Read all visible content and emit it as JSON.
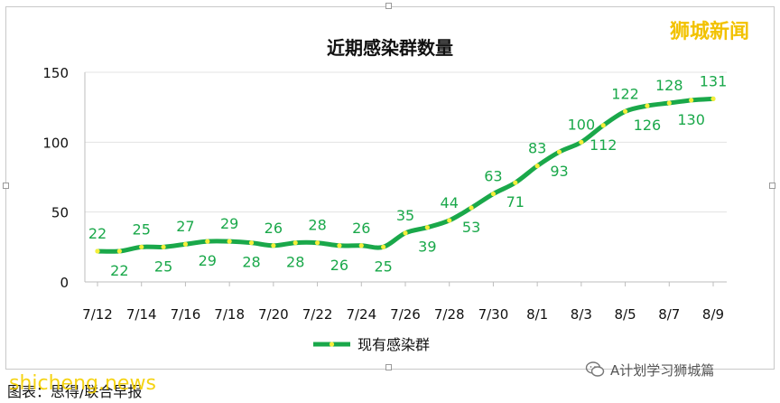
{
  "brand_text": "狮城新闻",
  "watermark_text": "shicheng.news",
  "caption_text": "图表：思得/联合早报",
  "wechat_account": "A计划学习狮城篇",
  "colors": {
    "line": "#1aa84a",
    "marker": "#f5ee3a",
    "label": "#1aa84a",
    "grid": "#e3e3e3"
  },
  "chart_data": {
    "type": "line",
    "title": "近期感染群数量",
    "xlabel": "",
    "ylabel": "",
    "ylim": [
      0,
      150
    ],
    "y_ticks": [
      "0",
      "50",
      "100",
      "150"
    ],
    "x_tick_labels": [
      "7/12",
      "7/14",
      "7/16",
      "7/18",
      "7/20",
      "7/22",
      "7/24",
      "7/26",
      "7/28",
      "7/30",
      "8/1",
      "8/3",
      "8/5",
      "8/7",
      "8/9"
    ],
    "grid": true,
    "legend_position": "bottom",
    "series": [
      {
        "name": "现有感染群",
        "values": [
          22,
          22,
          25,
          25,
          27,
          29,
          29,
          28,
          26,
          28,
          28,
          26,
          26,
          25,
          35,
          39,
          44,
          53,
          63,
          71,
          83,
          93,
          100,
          112,
          122,
          126,
          128,
          130,
          131
        ]
      }
    ]
  }
}
